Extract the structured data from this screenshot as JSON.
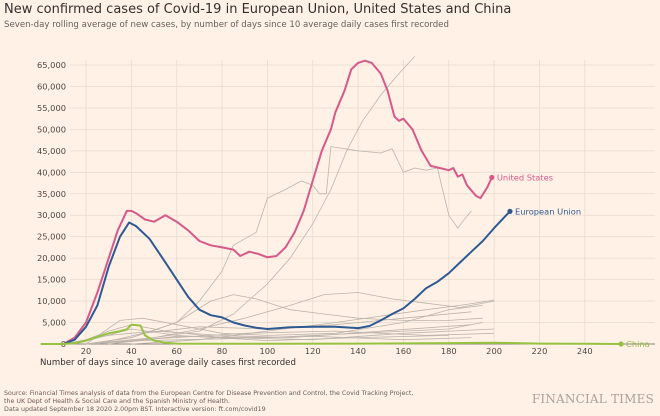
{
  "header": {
    "title": "New confirmed cases of Covid-19 in European Union, United States and China",
    "subtitle": "Seven-day rolling average of new cases, by number of days since 10 average daily cases first recorded"
  },
  "footer": {
    "source_lines": [
      "Source: Financial Times analysis of data from the European Centre for Disease Prevention and Control, the Covid Tracking Project,",
      "the UK Dept of Health & Social Care and the Spanish Ministry of Health.",
      "Data updated September 18 2020 2.00pm BST. Interactive version: ft.com/covid19"
    ],
    "logo": "FINANCIAL TIMES"
  },
  "colors": {
    "background": "#fff1e5",
    "us": "#d6598a",
    "eu": "#2d5a93",
    "china": "#96c241",
    "other": "#bdb4ac",
    "grid": "#e8dbd0"
  },
  "chart_data": {
    "type": "line",
    "title": "New confirmed cases of Covid-19 in European Union, United States and China",
    "xlabel": "Number of days since 10 average daily cases first recorded",
    "ylabel": "",
    "xlim": [
      0,
      258
    ],
    "ylim": [
      0,
      66000
    ],
    "xticks": [
      20,
      40,
      60,
      80,
      100,
      120,
      140,
      160,
      180,
      200,
      220,
      240
    ],
    "yticks": [
      0,
      5000,
      10000,
      15000,
      20000,
      25000,
      30000,
      35000,
      40000,
      45000,
      50000,
      55000,
      60000,
      65000
    ],
    "ytick_labels": [
      "0",
      "5,000",
      "10,000",
      "15,000",
      "20,000",
      "25,000",
      "30,000",
      "35,000",
      "40,000",
      "45,000",
      "50,000",
      "55,000",
      "60,000",
      "65,000"
    ],
    "grid": true,
    "legend": "direct labels at line ends",
    "series": [
      {
        "name": "United States",
        "color": "#d6598a",
        "highlight": true,
        "x": [
          10,
          15,
          20,
          25,
          30,
          34,
          38,
          40,
          42,
          46,
          50,
          55,
          60,
          65,
          70,
          75,
          80,
          85,
          88,
          92,
          96,
          100,
          104,
          108,
          112,
          116,
          120,
          124,
          128,
          130,
          134,
          137,
          140,
          143,
          146,
          150,
          153,
          156,
          158,
          160,
          164,
          168,
          172,
          176,
          180,
          182,
          184,
          186,
          188,
          192,
          194,
          197,
          199
        ],
        "y": [
          0,
          1500,
          5000,
          12000,
          20000,
          26500,
          31000,
          31000,
          30500,
          29000,
          28500,
          30000,
          28500,
          26500,
          24000,
          23000,
          22500,
          22000,
          20500,
          21500,
          21000,
          20200,
          20500,
          22500,
          26000,
          31000,
          38000,
          45000,
          50000,
          54000,
          59000,
          64000,
          65500,
          66000,
          65500,
          63000,
          59000,
          53000,
          52000,
          52500,
          50000,
          45000,
          41500,
          41000,
          40500,
          41000,
          39000,
          39500,
          37000,
          34500,
          34000,
          36500,
          38800
        ]
      },
      {
        "name": "European Union",
        "color": "#2d5a93",
        "highlight": true,
        "x": [
          10,
          15,
          20,
          25,
          30,
          35,
          39,
          42,
          48,
          55,
          60,
          65,
          70,
          75,
          80,
          85,
          90,
          95,
          100,
          105,
          110,
          120,
          130,
          140,
          145,
          150,
          155,
          160,
          165,
          170,
          175,
          180,
          185,
          190,
          195,
          200,
          205,
          207
        ],
        "y": [
          0,
          1000,
          4000,
          9000,
          18000,
          25000,
          28300,
          27500,
          24500,
          19000,
          15000,
          11000,
          8000,
          6700,
          6200,
          5000,
          4300,
          3800,
          3500,
          3700,
          3900,
          4000,
          4000,
          3700,
          4200,
          5500,
          7000,
          8300,
          10500,
          13000,
          14500,
          16500,
          19000,
          21500,
          24000,
          27000,
          29800,
          30900
        ]
      },
      {
        "name": "China",
        "color": "#96c241",
        "highlight": true,
        "x": [
          0,
          10,
          15,
          20,
          25,
          30,
          35,
          38,
          40,
          44,
          46,
          50,
          55,
          60,
          80,
          100,
          140,
          180,
          200,
          210,
          220,
          240,
          256
        ],
        "y": [
          0,
          0,
          200,
          800,
          1700,
          2500,
          3000,
          3400,
          4500,
          4300,
          2000,
          800,
          300,
          100,
          50,
          50,
          100,
          200,
          300,
          200,
          100,
          50,
          0
        ]
      },
      {
        "color": "#bdb4ac",
        "x": [
          20,
          40,
          60,
          70,
          80,
          85,
          95,
          100,
          108,
          115,
          120,
          123,
          126,
          128,
          140,
          150,
          155,
          160,
          165,
          170,
          175,
          180,
          184,
          186,
          190
        ],
        "y": [
          0,
          1500,
          5000,
          10000,
          17000,
          23000,
          26000,
          34000,
          36000,
          38000,
          37000,
          35000,
          35000,
          46000,
          45000,
          44500,
          45500,
          40000,
          41000,
          40500,
          41000,
          30000,
          27000,
          28500,
          31000
        ]
      },
      {
        "color": "#bdb4ac",
        "x": [
          20,
          50,
          70,
          85,
          100,
          110,
          120,
          128,
          135,
          142,
          150,
          158,
          165
        ],
        "y": [
          0,
          1500,
          3000,
          7000,
          14000,
          20000,
          28000,
          36000,
          45000,
          52000,
          58000,
          63000,
          67000
        ]
      },
      {
        "color": "#bdb4ac",
        "x": [
          20,
          40,
          60,
          75,
          85,
          95,
          110,
          125,
          140,
          160,
          180,
          195
        ],
        "y": [
          0,
          1500,
          5000,
          10000,
          11500,
          10500,
          8000,
          7000,
          6000,
          5500,
          5500,
          6000
        ]
      },
      {
        "color": "#bdb4ac",
        "x": [
          30,
          50,
          70,
          90,
          110,
          125,
          140,
          155,
          170,
          185,
          200
        ],
        "y": [
          0,
          1500,
          3500,
          6000,
          9000,
          11500,
          12000,
          10500,
          9500,
          8500,
          10000
        ]
      },
      {
        "color": "#bdb4ac",
        "x": [
          20,
          35,
          45,
          60,
          80,
          100,
          130,
          160,
          180,
          195
        ],
        "y": [
          0,
          5500,
          6000,
          4500,
          2500,
          2000,
          2500,
          5000,
          8000,
          9000
        ]
      },
      {
        "color": "#bdb4ac",
        "x": [
          40,
          70,
          100,
          130,
          150,
          170,
          185,
          200
        ],
        "y": [
          0,
          1000,
          3000,
          5000,
          6500,
          8000,
          9000,
          10200
        ]
      },
      {
        "color": "#bdb4ac",
        "x": [
          15,
          30,
          40,
          55,
          80,
          120,
          160,
          200
        ],
        "y": [
          0,
          3000,
          4500,
          3000,
          1500,
          1000,
          2500,
          3500
        ]
      },
      {
        "color": "#bdb4ac",
        "x": [
          25,
          45,
          70,
          100,
          130,
          160,
          190
        ],
        "y": [
          0,
          2500,
          4000,
          3500,
          4500,
          6000,
          7500
        ]
      },
      {
        "color": "#bdb4ac",
        "x": [
          10,
          30,
          50,
          80,
          110,
          150,
          190
        ],
        "y": [
          0,
          2000,
          3000,
          2000,
          1500,
          3000,
          4500
        ]
      },
      {
        "color": "#bdb4ac",
        "x": [
          20,
          50,
          90,
          130,
          170,
          200
        ],
        "y": [
          0,
          1200,
          2500,
          3000,
          2000,
          2500
        ]
      },
      {
        "color": "#bdb4ac",
        "x": [
          15,
          40,
          60,
          100,
          140,
          180
        ],
        "y": [
          0,
          3500,
          2000,
          800,
          1500,
          2000
        ]
      },
      {
        "color": "#bdb4ac",
        "x": [
          30,
          60,
          100,
          140,
          180,
          195
        ],
        "y": [
          0,
          1800,
          1500,
          2500,
          3500,
          5000
        ]
      },
      {
        "color": "#bdb4ac",
        "x": [
          20,
          45,
          80,
          120,
          160,
          190
        ],
        "y": [
          0,
          800,
          1200,
          1800,
          1000,
          1500
        ]
      }
    ]
  }
}
